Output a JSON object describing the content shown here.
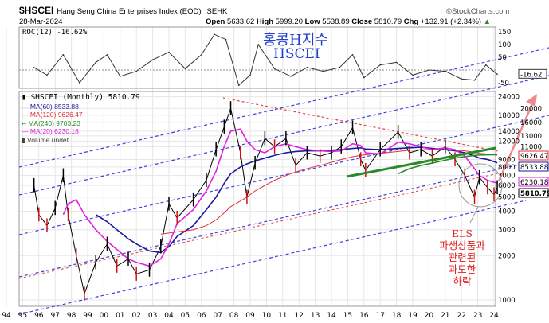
{
  "header": {
    "symbol": "$HSCEI",
    "name": "Hang Seng China Enterprises Index (EOD)",
    "exchange": "SEHK",
    "source": "©StockCharts.com",
    "date": "28-Mar-2024",
    "open_label": "Open",
    "open": "5633.62",
    "high_label": "High",
    "high": "5999.20",
    "low_label": "Low",
    "low": "5538.89",
    "close_label": "Close",
    "close": "5810.79",
    "chg_label": "Chg",
    "chg": "+132.91 (+2.34%)"
  },
  "annotations": {
    "title_kr": "홍콩H지수",
    "title_en": "HSCEI",
    "els_lines": [
      "ELS",
      "파생상품과",
      "관련된",
      "과도한",
      "하락"
    ]
  },
  "colors": {
    "ma60": "#1a1a9a",
    "ma120": "#e0303a",
    "ma240": "#2a8a2a",
    "ma20": "#e020e0",
    "price": "#000000",
    "up": "#000000",
    "down": "#d01010",
    "channel": "#4040e0",
    "downtrend": "#e04040",
    "arrow": "#f08a8a"
  },
  "chart_data": [
    {
      "type": "line",
      "title": "ROC(12) -16.62%",
      "legend": "ROC(12) -16.62%",
      "last_value_label": "-16.62",
      "yticks": [
        "150",
        "100",
        "50",
        "-50"
      ],
      "ylim": [
        -60,
        170
      ],
      "x": [
        1995.7,
        1996.5,
        1997.5,
        1998.5,
        1999.5,
        2000.2,
        2001,
        2002,
        2003,
        2004,
        2005,
        2006,
        2006.8,
        2007.5,
        2008.3,
        2009,
        2009.5,
        2010.5,
        2011.5,
        2012.5,
        2013.5,
        2014.5,
        2015.3,
        2016,
        2017,
        2018,
        2019,
        2020,
        2021,
        2022,
        2022.8,
        2023.5,
        2024.2
      ],
      "values": [
        10,
        -20,
        60,
        -50,
        30,
        60,
        -25,
        -5,
        40,
        70,
        5,
        60,
        140,
        120,
        -60,
        -20,
        100,
        5,
        -25,
        10,
        -5,
        10,
        60,
        -30,
        20,
        30,
        -20,
        0,
        -5,
        -35,
        -40,
        20,
        -16.62
      ]
    },
    {
      "type": "line",
      "title": "$HSCEI (Monthly) 5810.79",
      "legend": [
        "$HSCEI (Monthly) 5810.79",
        "MA(60) 8533.88",
        "MA(120) 9626.47",
        "MA(240) 9703.23",
        "MA(20) 6230.18",
        "Volume undef"
      ],
      "yscale": "log",
      "ylim": [
        900,
        26000
      ],
      "yticks": [
        "24000",
        "20000",
        "18000",
        "16000",
        "14000",
        "13000",
        "12000",
        "11000",
        "9000",
        "8000",
        "7000",
        "6000",
        "5000",
        "4000",
        "3000",
        "2000",
        "1000"
      ],
      "xticks": [
        "94",
        "95",
        "96",
        "97",
        "98",
        "99",
        "00",
        "01",
        "02",
        "03",
        "04",
        "05",
        "06",
        "07",
        "08",
        "09",
        "10",
        "11",
        "12",
        "13",
        "14",
        "15",
        "16",
        "17",
        "18",
        "19",
        "20",
        "21",
        "22",
        "23",
        "24"
      ],
      "last_labels": [
        "9626.47",
        "8533.88",
        "6230.18",
        "5810.79"
      ],
      "x": [
        1995.7,
        1996,
        1996.5,
        1997,
        1997.5,
        1997.8,
        1998.3,
        1998.8,
        1999.5,
        2000.2,
        2000.8,
        2001.5,
        2002,
        2002.8,
        2003.5,
        2004,
        2004.5,
        2005.5,
        2006.3,
        2006.9,
        2007.4,
        2007.8,
        2008.4,
        2008.8,
        2009.3,
        2009.9,
        2010.5,
        2011.2,
        2011.8,
        2012.5,
        2013.3,
        2014,
        2014.6,
        2015.3,
        2015.8,
        2016.1,
        2017,
        2018.1,
        2018.8,
        2019.5,
        2020.2,
        2021,
        2021.6,
        2022.2,
        2022.8,
        2023.1,
        2023.6,
        2024.0,
        2024.2
      ],
      "series": [
        {
          "name": "$HSCEI",
          "values": [
            6000,
            3800,
            3200,
            4200,
            7000,
            3800,
            2000,
            1100,
            1800,
            2400,
            1700,
            1900,
            1500,
            1600,
            2300,
            4500,
            3600,
            4800,
            6500,
            10500,
            15000,
            20000,
            10000,
            5000,
            8500,
            12500,
            11000,
            12500,
            8200,
            10000,
            9500,
            10000,
            11000,
            14800,
            9000,
            7600,
            10500,
            13800,
            10000,
            10500,
            9500,
            11000,
            9000,
            7000,
            5000,
            6800,
            5800,
            5200,
            5810.79
          ]
        },
        {
          "name": "MA(60)",
          "values": [
            null,
            null,
            null,
            null,
            null,
            null,
            null,
            null,
            3800,
            3400,
            3000,
            2600,
            2400,
            2150,
            2100,
            2300,
            2700,
            3200,
            4100,
            5000,
            6200,
            7200,
            8000,
            8400,
            8800,
            9200,
            9600,
            10000,
            10200,
            10300,
            10300,
            10400,
            10500,
            10700,
            10800,
            10600,
            10500,
            10700,
            10800,
            10900,
            10700,
            10500,
            10300,
            10000,
            9500,
            9200,
            9000,
            8700,
            8533.88
          ]
        },
        {
          "name": "MA(120)",
          "values": [
            null,
            null,
            null,
            null,
            null,
            null,
            null,
            null,
            null,
            null,
            null,
            null,
            null,
            null,
            2800,
            2850,
            2900,
            3000,
            3200,
            3500,
            3900,
            4300,
            4700,
            5000,
            5500,
            6000,
            6500,
            7000,
            7400,
            7800,
            8200,
            8600,
            9000,
            9400,
            9600,
            9700,
            9900,
            10200,
            10400,
            10500,
            10500,
            10500,
            10400,
            10300,
            10100,
            9900,
            9800,
            9700,
            9626.47
          ]
        },
        {
          "name": "MA(240)",
          "values": [
            null,
            null,
            null,
            null,
            null,
            null,
            null,
            null,
            null,
            null,
            null,
            null,
            null,
            null,
            null,
            null,
            null,
            null,
            null,
            null,
            null,
            null,
            null,
            null,
            null,
            null,
            null,
            null,
            null,
            null,
            null,
            null,
            null,
            null,
            null,
            null,
            null,
            7200,
            7800,
            8200,
            8500,
            8900,
            9200,
            9400,
            9600,
            9650,
            9680,
            9700,
            9703.23
          ]
        },
        {
          "name": "MA(20)",
          "values": [
            null,
            null,
            null,
            null,
            3800,
            4500,
            4800,
            3800,
            3000,
            2500,
            2200,
            1900,
            1800,
            1700,
            1900,
            2400,
            3300,
            4100,
            5500,
            7500,
            11000,
            14000,
            14500,
            12000,
            10500,
            10000,
            11000,
            11500,
            11000,
            10500,
            10300,
            10200,
            10300,
            11500,
            11200,
            10000,
            9800,
            11800,
            11500,
            11000,
            10500,
            10800,
            10500,
            9500,
            7800,
            7000,
            6500,
            6300,
            6230.18
          ]
        }
      ]
    }
  ]
}
